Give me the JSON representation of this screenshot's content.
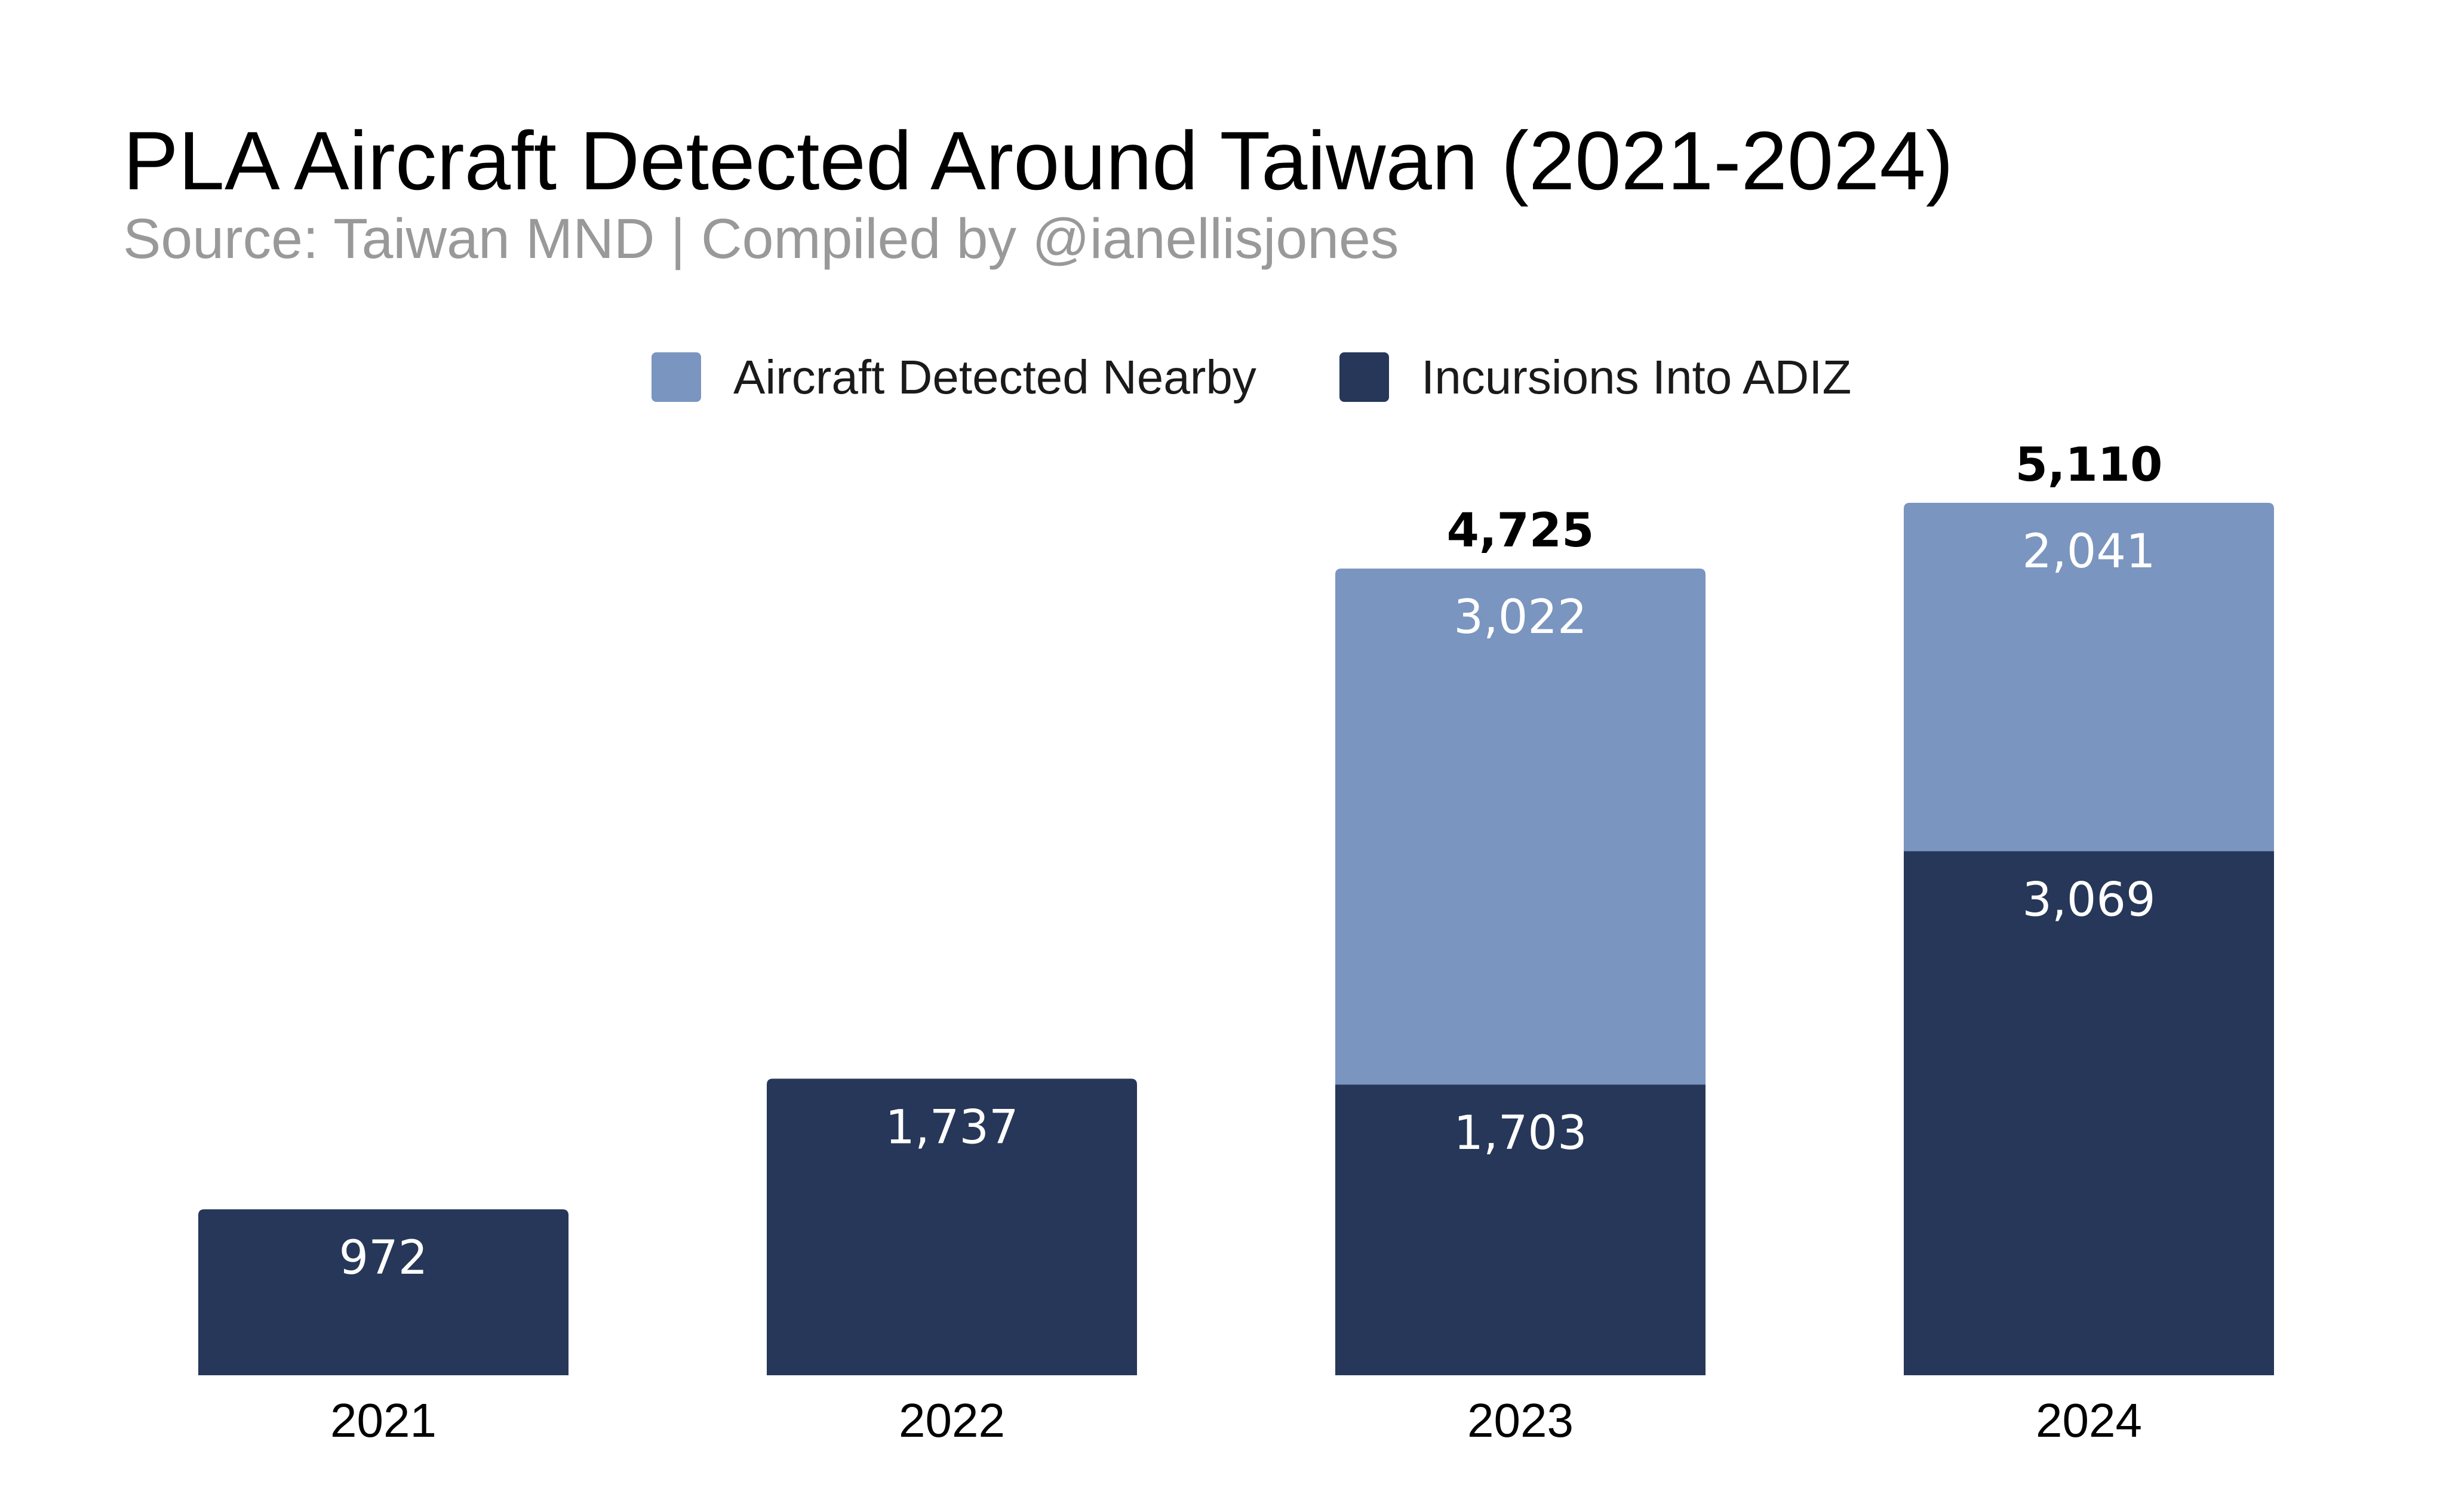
{
  "chart_data": {
    "type": "bar",
    "stacked": true,
    "title": "PLA Aircraft Detected Around Taiwan (2021-2024)",
    "subtitle": "Source: Taiwan MND | Compiled by @ianellisjones",
    "categories": [
      "2021",
      "2022",
      "2023",
      "2024"
    ],
    "series": [
      {
        "name": "Incursions Into ADIZ",
        "color": "#263759",
        "values": [
          972,
          1737,
          1703,
          3069
        ],
        "labels": [
          "972",
          "1,737",
          "1,703",
          "3,069"
        ]
      },
      {
        "name": "Aircraft Detected Nearby",
        "color": "#7a95bf",
        "values": [
          null,
          null,
          3022,
          2041
        ],
        "labels": [
          "",
          "",
          "3,022",
          "2,041"
        ]
      }
    ],
    "totals": [
      null,
      null,
      4725,
      5110
    ],
    "total_labels": [
      "",
      "",
      "4,725",
      "5,110"
    ],
    "legend": {
      "position": "top-center",
      "order": [
        "Aircraft Detected Nearby",
        "Incursions Into ADIZ"
      ]
    },
    "ylim": [
      0,
      5110
    ],
    "grid": false,
    "xlabel": "",
    "ylabel": ""
  }
}
